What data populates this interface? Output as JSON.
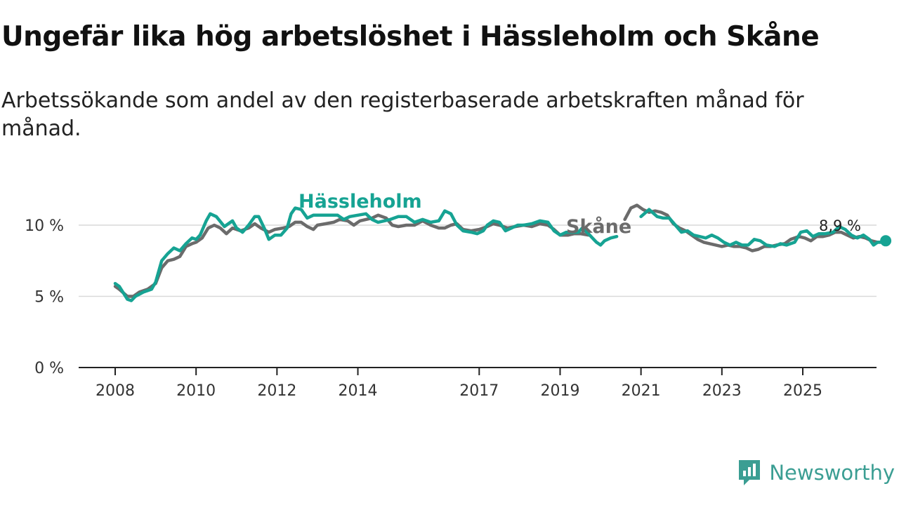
{
  "title": "Ungefär lika hög arbetslöshet i Hässleholm och Skåne",
  "subtitle": "Arbetssökande som andel av den registerbaserade arbetskraften månad för månad.",
  "brand": {
    "name": "Newsworthy",
    "icon": "newsworthy-logo-icon"
  },
  "colors": {
    "hassleholm": "#16a393",
    "skane": "#6b6b6b",
    "grid": "#d9d9d9",
    "axis": "#222222"
  },
  "chart_data": {
    "type": "line",
    "title": "Ungefär lika hög arbetslöshet i Hässleholm och Skåne",
    "xlabel": "",
    "ylabel": "",
    "ylim": [
      0,
      12
    ],
    "xlim": [
      2007.8,
      2026.6
    ],
    "y_ticks": [
      0,
      5,
      10
    ],
    "y_tick_labels": [
      "0 %",
      "5 %",
      "10 %"
    ],
    "x_ticks": [
      2008,
      2010,
      2012,
      2014,
      2017,
      2019,
      2021,
      2023,
      2025
    ],
    "x_tick_labels": [
      "2008",
      "2010",
      "2012",
      "2014",
      "2017",
      "2019",
      "2021",
      "2023",
      "2025"
    ],
    "end_label": "8,9 %",
    "series": [
      {
        "name": "Hässleholm",
        "key": "hassleholm",
        "points": [
          [
            2008.0,
            5.9
          ],
          [
            2008.1,
            5.7
          ],
          [
            2008.3,
            4.8
          ],
          [
            2008.4,
            4.7
          ],
          [
            2008.5,
            5.0
          ],
          [
            2008.7,
            5.3
          ],
          [
            2008.9,
            5.5
          ],
          [
            2009.0,
            6.0
          ],
          [
            2009.15,
            7.5
          ],
          [
            2009.3,
            8.0
          ],
          [
            2009.45,
            8.4
          ],
          [
            2009.6,
            8.2
          ],
          [
            2009.75,
            8.7
          ],
          [
            2009.9,
            9.1
          ],
          [
            2010.0,
            9.0
          ],
          [
            2010.1,
            9.3
          ],
          [
            2010.25,
            10.3
          ],
          [
            2010.35,
            10.8
          ],
          [
            2010.5,
            10.6
          ],
          [
            2010.7,
            9.9
          ],
          [
            2010.9,
            10.3
          ],
          [
            2011.0,
            9.8
          ],
          [
            2011.15,
            9.5
          ],
          [
            2011.3,
            10.0
          ],
          [
            2011.45,
            10.6
          ],
          [
            2011.55,
            10.6
          ],
          [
            2011.7,
            9.7
          ],
          [
            2011.8,
            9.0
          ],
          [
            2011.95,
            9.3
          ],
          [
            2012.1,
            9.3
          ],
          [
            2012.25,
            9.8
          ],
          [
            2012.35,
            10.8
          ],
          [
            2012.45,
            11.2
          ],
          [
            2012.6,
            11.1
          ],
          [
            2012.75,
            10.5
          ],
          [
            2012.9,
            10.7
          ],
          [
            2013.0,
            10.7
          ],
          [
            2013.5,
            10.7
          ],
          [
            2013.65,
            10.4
          ],
          [
            2013.8,
            10.6
          ],
          [
            2014.0,
            10.7
          ],
          [
            2014.2,
            10.8
          ],
          [
            2014.35,
            10.4
          ],
          [
            2014.5,
            10.2
          ],
          [
            2014.65,
            10.3
          ],
          [
            2014.8,
            10.4
          ],
          [
            2015.0,
            10.6
          ],
          [
            2015.2,
            10.6
          ],
          [
            2015.4,
            10.2
          ],
          [
            2015.6,
            10.4
          ],
          [
            2015.8,
            10.2
          ],
          [
            2016.0,
            10.3
          ],
          [
            2016.15,
            11.0
          ],
          [
            2016.3,
            10.8
          ],
          [
            2016.45,
            10.0
          ],
          [
            2016.6,
            9.6
          ],
          [
            2016.8,
            9.5
          ],
          [
            2016.95,
            9.4
          ],
          [
            2017.1,
            9.6
          ],
          [
            2017.2,
            10.0
          ],
          [
            2017.35,
            10.3
          ],
          [
            2017.5,
            10.2
          ],
          [
            2017.65,
            9.6
          ],
          [
            2017.8,
            9.8
          ],
          [
            2017.95,
            10.0
          ],
          [
            2018.1,
            10.0
          ],
          [
            2018.3,
            10.1
          ],
          [
            2018.5,
            10.3
          ],
          [
            2018.7,
            10.2
          ],
          [
            2018.85,
            9.6
          ],
          [
            2019.0,
            9.3
          ],
          [
            2019.15,
            9.5
          ],
          [
            2019.3,
            9.5
          ],
          [
            2019.45,
            9.5
          ],
          [
            2019.55,
            9.8
          ],
          [
            2019.7,
            9.4
          ],
          [
            2019.8,
            9.1
          ],
          [
            2019.9,
            8.8
          ],
          [
            2020.0,
            8.6
          ],
          [
            2020.1,
            8.9
          ],
          [
            2020.25,
            9.1
          ],
          [
            2020.4,
            9.2
          ],
          null,
          [
            2021.0,
            10.6
          ],
          [
            2021.2,
            11.1
          ],
          [
            2021.4,
            10.6
          ],
          [
            2021.55,
            10.5
          ],
          [
            2021.7,
            10.5
          ],
          [
            2021.85,
            10.0
          ],
          [
            2022.0,
            9.5
          ],
          [
            2022.15,
            9.6
          ],
          [
            2022.3,
            9.3
          ],
          [
            2022.45,
            9.2
          ],
          [
            2022.6,
            9.1
          ],
          [
            2022.75,
            9.3
          ],
          [
            2022.9,
            9.1
          ],
          [
            2023.05,
            8.8
          ],
          [
            2023.2,
            8.6
          ],
          [
            2023.35,
            8.8
          ],
          [
            2023.5,
            8.6
          ],
          [
            2023.65,
            8.6
          ],
          [
            2023.8,
            9.0
          ],
          [
            2023.95,
            8.9
          ],
          [
            2024.1,
            8.6
          ],
          [
            2024.3,
            8.5
          ],
          [
            2024.45,
            8.7
          ],
          [
            2024.6,
            8.6
          ],
          [
            2024.8,
            8.8
          ],
          [
            2024.95,
            9.5
          ],
          [
            2025.1,
            9.6
          ],
          [
            2025.25,
            9.2
          ],
          [
            2025.4,
            9.4
          ],
          [
            2025.55,
            9.4
          ],
          [
            2025.75,
            9.5
          ],
          [
            2025.9,
            9.9
          ],
          [
            2026.05,
            9.7
          ],
          [
            2026.2,
            9.3
          ],
          [
            2026.35,
            9.1
          ],
          [
            2026.5,
            9.3
          ],
          [
            2026.65,
            9.0
          ],
          [
            2026.75,
            8.6
          ],
          [
            2026.85,
            8.8
          ],
          [
            2026.95,
            8.8
          ],
          [
            2027.05,
            8.9
          ]
        ]
      },
      {
        "name": "Skåne",
        "key": "skane",
        "points": [
          [
            2008.0,
            5.7
          ],
          [
            2008.1,
            5.5
          ],
          [
            2008.3,
            5.0
          ],
          [
            2008.45,
            5.0
          ],
          [
            2008.6,
            5.3
          ],
          [
            2008.8,
            5.5
          ],
          [
            2009.0,
            5.9
          ],
          [
            2009.15,
            7.0
          ],
          [
            2009.3,
            7.5
          ],
          [
            2009.45,
            7.6
          ],
          [
            2009.6,
            7.8
          ],
          [
            2009.75,
            8.5
          ],
          [
            2009.9,
            8.7
          ],
          [
            2010.0,
            8.8
          ],
          [
            2010.15,
            9.1
          ],
          [
            2010.3,
            9.8
          ],
          [
            2010.45,
            10.0
          ],
          [
            2010.6,
            9.8
          ],
          [
            2010.75,
            9.4
          ],
          [
            2010.9,
            9.8
          ],
          [
            2011.1,
            9.6
          ],
          [
            2011.3,
            9.8
          ],
          [
            2011.45,
            10.1
          ],
          [
            2011.6,
            9.8
          ],
          [
            2011.8,
            9.5
          ],
          [
            2011.95,
            9.7
          ],
          [
            2012.15,
            9.8
          ],
          [
            2012.3,
            9.9
          ],
          [
            2012.45,
            10.2
          ],
          [
            2012.6,
            10.2
          ],
          [
            2012.75,
            9.9
          ],
          [
            2012.9,
            9.7
          ],
          [
            2013.0,
            10.0
          ],
          [
            2013.2,
            10.1
          ],
          [
            2013.4,
            10.2
          ],
          [
            2013.55,
            10.4
          ],
          [
            2013.75,
            10.3
          ],
          [
            2013.9,
            10.0
          ],
          [
            2014.05,
            10.3
          ],
          [
            2014.2,
            10.4
          ],
          [
            2014.35,
            10.5
          ],
          [
            2014.5,
            10.7
          ],
          [
            2014.7,
            10.5
          ],
          [
            2014.85,
            10.0
          ],
          [
            2015.0,
            9.9
          ],
          [
            2015.2,
            10.0
          ],
          [
            2015.4,
            10.0
          ],
          [
            2015.6,
            10.3
          ],
          [
            2015.8,
            10.0
          ],
          [
            2016.0,
            9.8
          ],
          [
            2016.15,
            9.8
          ],
          [
            2016.3,
            10.0
          ],
          [
            2016.45,
            10.1
          ],
          [
            2016.6,
            9.7
          ],
          [
            2016.8,
            9.6
          ],
          [
            2017.0,
            9.7
          ],
          [
            2017.2,
            9.9
          ],
          [
            2017.35,
            10.1
          ],
          [
            2017.5,
            10.0
          ],
          [
            2017.7,
            9.8
          ],
          [
            2017.9,
            9.9
          ],
          [
            2018.1,
            10.0
          ],
          [
            2018.3,
            9.9
          ],
          [
            2018.5,
            10.1
          ],
          [
            2018.7,
            10.0
          ],
          [
            2018.85,
            9.7
          ],
          [
            2019.0,
            9.3
          ],
          [
            2019.2,
            9.3
          ],
          [
            2019.35,
            9.4
          ],
          [
            2019.5,
            9.4
          ],
          [
            2019.7,
            9.3
          ],
          null,
          [
            2020.6,
            10.4
          ],
          [
            2020.75,
            11.2
          ],
          [
            2020.9,
            11.4
          ],
          [
            2021.05,
            11.1
          ],
          [
            2021.2,
            10.9
          ],
          [
            2021.35,
            11.0
          ],
          [
            2021.5,
            10.9
          ],
          [
            2021.65,
            10.7
          ],
          [
            2021.8,
            10.1
          ],
          [
            2021.95,
            9.8
          ],
          [
            2022.1,
            9.6
          ],
          [
            2022.25,
            9.3
          ],
          [
            2022.4,
            9.0
          ],
          [
            2022.55,
            8.8
          ],
          [
            2022.7,
            8.7
          ],
          [
            2022.85,
            8.6
          ],
          [
            2023.0,
            8.5
          ],
          [
            2023.15,
            8.6
          ],
          [
            2023.3,
            8.5
          ],
          [
            2023.45,
            8.5
          ],
          [
            2023.6,
            8.4
          ],
          [
            2023.75,
            8.2
          ],
          [
            2023.9,
            8.3
          ],
          [
            2024.05,
            8.5
          ],
          [
            2024.2,
            8.5
          ],
          [
            2024.35,
            8.6
          ],
          [
            2024.55,
            8.7
          ],
          [
            2024.7,
            9.0
          ],
          [
            2024.9,
            9.2
          ],
          [
            2025.05,
            9.1
          ],
          [
            2025.2,
            8.9
          ],
          [
            2025.35,
            9.2
          ],
          [
            2025.5,
            9.2
          ],
          [
            2025.65,
            9.3
          ],
          [
            2025.8,
            9.5
          ],
          [
            2025.95,
            9.5
          ],
          [
            2026.1,
            9.3
          ],
          [
            2026.25,
            9.1
          ],
          [
            2026.4,
            9.2
          ],
          [
            2026.55,
            9.1
          ],
          [
            2026.7,
            8.9
          ],
          [
            2026.85,
            8.8
          ],
          [
            2027.0,
            8.8
          ],
          [
            2027.05,
            8.8
          ]
        ]
      }
    ]
  }
}
